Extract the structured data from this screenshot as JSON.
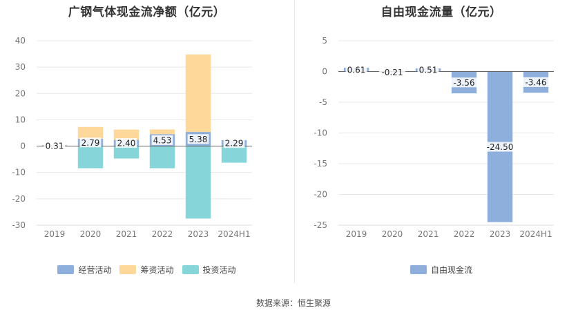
{
  "colors": {
    "operating": "#8eaedb",
    "financing": "#fed89a",
    "investing": "#86d5d8",
    "fcf": "#8eaedb",
    "grid": "#e8e8e8",
    "axis": "#777777",
    "tick": "#777777"
  },
  "source": "数据来源：恒生聚源",
  "chart_data": [
    {
      "type": "bar",
      "stacked": true,
      "title": "广钢气体现金流净额（亿元）",
      "categories": [
        "2019",
        "2020",
        "2021",
        "2022",
        "2023",
        "2024H1"
      ],
      "ylim": [
        -30,
        40
      ],
      "yticks": [
        40,
        30,
        20,
        10,
        0,
        -10,
        -20,
        -30
      ],
      "grid": true,
      "legend": "bottom",
      "series": [
        {
          "name": "经营活动",
          "color_key": "operating",
          "values": [
            0.31,
            2.79,
            2.4,
            4.53,
            5.38,
            2.29
          ],
          "labels": [
            "0.31",
            "2.79",
            "2.40",
            "4.53",
            "5.38",
            "2.29"
          ]
        },
        {
          "name": "筹资活动",
          "color_key": "financing",
          "values": [
            0.1,
            4.5,
            3.9,
            1.8,
            29.4,
            0
          ]
        },
        {
          "name": "投资活动",
          "color_key": "investing",
          "values": [
            0,
            -8.4,
            -4.7,
            -8.4,
            -27.5,
            -6.3
          ]
        }
      ]
    },
    {
      "type": "bar",
      "title": "自由现金流量（亿元）",
      "categories": [
        "2019",
        "2020",
        "2021",
        "2022",
        "2023",
        "2024H1"
      ],
      "ylim": [
        -25,
        5
      ],
      "yticks": [
        5,
        0,
        -5,
        -10,
        -15,
        -20,
        -25
      ],
      "grid": true,
      "legend": "bottom",
      "series": [
        {
          "name": "自由现金流",
          "color_key": "fcf",
          "values": [
            0.61,
            -0.21,
            0.51,
            -3.56,
            -24.5,
            -3.46
          ],
          "labels": [
            "0.61",
            "-0.21",
            "0.51",
            "-3.56",
            "-24.50",
            "-3.46"
          ]
        }
      ]
    }
  ]
}
